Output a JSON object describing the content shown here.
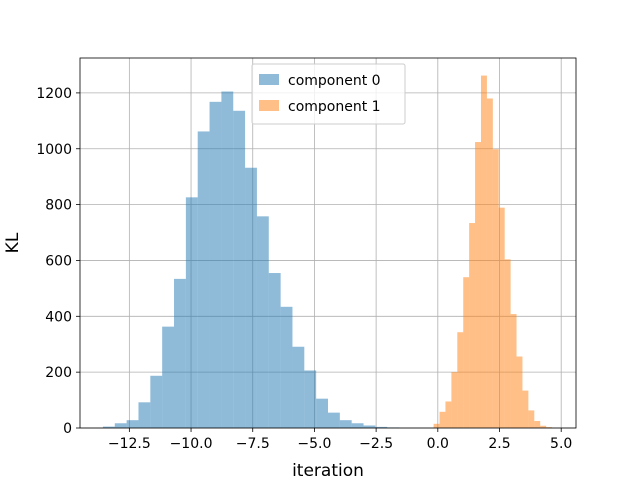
{
  "chart_data": {
    "type": "histogram",
    "xlabel": "iteration",
    "ylabel": "KL",
    "xlim": [
      -14.5,
      5.6
    ],
    "ylim": [
      0,
      1325
    ],
    "xticks": [
      -12.5,
      -10.0,
      -7.5,
      -5.0,
      -2.5,
      0.0,
      2.5,
      5.0
    ],
    "xtick_labels": [
      "−12.5",
      "−10.0",
      "−7.5",
      "−5.0",
      "−2.5",
      "0.0",
      "2.5",
      "5.0"
    ],
    "yticks": [
      0,
      200,
      400,
      600,
      800,
      1000,
      1200
    ],
    "ytick_labels": [
      "0",
      "200",
      "400",
      "600",
      "800",
      "1000",
      "1200"
    ],
    "grid": true,
    "legend_position": "top-center",
    "series": [
      {
        "name": "component 0",
        "color": "#1f77b4",
        "opacity": 0.5,
        "bins": [
          {
            "x0": -13.57,
            "x1": -13.09,
            "count": 5
          },
          {
            "x0": -13.09,
            "x1": -12.61,
            "count": 17
          },
          {
            "x0": -12.61,
            "x1": -12.13,
            "count": 28
          },
          {
            "x0": -12.13,
            "x1": -11.65,
            "count": 92
          },
          {
            "x0": -11.65,
            "x1": -11.17,
            "count": 187
          },
          {
            "x0": -11.17,
            "x1": -10.69,
            "count": 363
          },
          {
            "x0": -10.69,
            "x1": -10.21,
            "count": 534
          },
          {
            "x0": -10.21,
            "x1": -9.73,
            "count": 826
          },
          {
            "x0": -9.73,
            "x1": -9.25,
            "count": 1062
          },
          {
            "x0": -9.25,
            "x1": -8.77,
            "count": 1168
          },
          {
            "x0": -8.77,
            "x1": -8.29,
            "count": 1205
          },
          {
            "x0": -8.29,
            "x1": -7.81,
            "count": 1136
          },
          {
            "x0": -7.81,
            "x1": -7.33,
            "count": 932
          },
          {
            "x0": -7.33,
            "x1": -6.85,
            "count": 758
          },
          {
            "x0": -6.85,
            "x1": -6.37,
            "count": 555
          },
          {
            "x0": -6.37,
            "x1": -5.89,
            "count": 434
          },
          {
            "x0": -5.89,
            "x1": -5.41,
            "count": 291
          },
          {
            "x0": -5.41,
            "x1": -4.93,
            "count": 206
          },
          {
            "x0": -4.93,
            "x1": -4.45,
            "count": 105
          },
          {
            "x0": -4.45,
            "x1": -3.97,
            "count": 55
          },
          {
            "x0": -3.97,
            "x1": -3.49,
            "count": 28
          },
          {
            "x0": -3.49,
            "x1": -3.01,
            "count": 17
          },
          {
            "x0": -3.01,
            "x1": -2.53,
            "count": 9
          },
          {
            "x0": -2.53,
            "x1": -2.05,
            "count": 4
          },
          {
            "x0": -2.05,
            "x1": -1.57,
            "count": 2
          }
        ]
      },
      {
        "name": "component 1",
        "color": "#ff7f0e",
        "opacity": 0.5,
        "bins": [
          {
            "x0": -0.17,
            "x1": 0.07,
            "count": 15
          },
          {
            "x0": 0.07,
            "x1": 0.31,
            "count": 58
          },
          {
            "x0": 0.31,
            "x1": 0.55,
            "count": 95
          },
          {
            "x0": 0.55,
            "x1": 0.79,
            "count": 200
          },
          {
            "x0": 0.79,
            "x1": 1.03,
            "count": 343
          },
          {
            "x0": 1.03,
            "x1": 1.27,
            "count": 540
          },
          {
            "x0": 1.27,
            "x1": 1.51,
            "count": 734
          },
          {
            "x0": 1.51,
            "x1": 1.75,
            "count": 1024
          },
          {
            "x0": 1.75,
            "x1": 1.99,
            "count": 1262
          },
          {
            "x0": 1.99,
            "x1": 2.23,
            "count": 1180
          },
          {
            "x0": 2.23,
            "x1": 2.47,
            "count": 998
          },
          {
            "x0": 2.47,
            "x1": 2.71,
            "count": 789
          },
          {
            "x0": 2.71,
            "x1": 2.95,
            "count": 604
          },
          {
            "x0": 2.95,
            "x1": 3.19,
            "count": 408
          },
          {
            "x0": 3.19,
            "x1": 3.43,
            "count": 256
          },
          {
            "x0": 3.43,
            "x1": 3.67,
            "count": 134
          },
          {
            "x0": 3.67,
            "x1": 3.91,
            "count": 63
          },
          {
            "x0": 3.91,
            "x1": 4.15,
            "count": 25
          },
          {
            "x0": 4.15,
            "x1": 4.39,
            "count": 8
          },
          {
            "x0": 4.39,
            "x1": 4.63,
            "count": 3
          }
        ]
      }
    ]
  }
}
